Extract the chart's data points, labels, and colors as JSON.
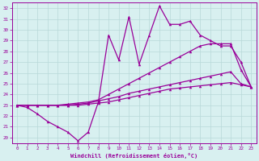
{
  "xlabel": "Windchill (Refroidissement éolien,°C)",
  "x": [
    0,
    1,
    2,
    3,
    4,
    5,
    6,
    7,
    8,
    9,
    10,
    11,
    12,
    13,
    14,
    15,
    16,
    17,
    18,
    19,
    20,
    21,
    22,
    23
  ],
  "y_spiky": [
    23.0,
    22.8,
    22.2,
    21.5,
    21.0,
    20.5,
    19.7,
    20.5,
    23.3,
    29.5,
    27.2,
    31.2,
    26.8,
    29.5,
    32.2,
    30.5,
    30.5,
    30.8,
    29.5,
    29.0,
    28.5,
    28.5,
    27.0,
    24.7
  ],
  "y_upper": [
    23.0,
    23.0,
    23.0,
    23.0,
    23.0,
    23.1,
    23.2,
    23.3,
    23.5,
    24.0,
    24.5,
    25.0,
    25.5,
    26.0,
    26.5,
    27.0,
    27.5,
    28.0,
    28.5,
    28.7,
    28.7,
    28.7,
    26.3,
    24.7
  ],
  "y_mid1": [
    23.0,
    23.0,
    23.0,
    23.0,
    23.0,
    23.0,
    23.1,
    23.2,
    23.4,
    23.6,
    23.8,
    24.1,
    24.3,
    24.5,
    24.7,
    24.9,
    25.1,
    25.3,
    25.5,
    25.7,
    25.9,
    26.1,
    25.0,
    24.7
  ],
  "y_lower": [
    23.0,
    23.0,
    23.0,
    23.0,
    23.0,
    23.0,
    23.0,
    23.1,
    23.2,
    23.3,
    23.5,
    23.7,
    23.9,
    24.1,
    24.3,
    24.5,
    24.6,
    24.7,
    24.8,
    24.9,
    25.0,
    25.1,
    24.9,
    24.7
  ],
  "line_color": "#990099",
  "bg_color": "#d8f0f0",
  "grid_color": "#b8d8d8",
  "ylim": [
    19.5,
    32.5
  ],
  "xlim": [
    -0.5,
    23.5
  ],
  "yticks": [
    20,
    21,
    22,
    23,
    24,
    25,
    26,
    27,
    28,
    29,
    30,
    31,
    32
  ],
  "xticks": [
    0,
    1,
    2,
    3,
    4,
    5,
    6,
    7,
    8,
    9,
    10,
    11,
    12,
    13,
    14,
    15,
    16,
    17,
    18,
    19,
    20,
    21,
    22,
    23
  ]
}
